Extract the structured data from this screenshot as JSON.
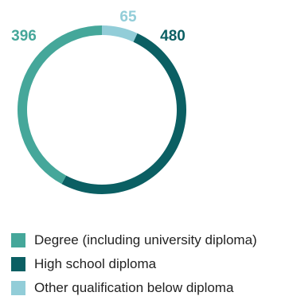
{
  "chart_data": {
    "type": "pie",
    "title": "",
    "categories": [
      "Degree (including university diploma)",
      "High school diploma",
      "Other qualification below diploma"
    ],
    "values": [
      396,
      480,
      65
    ],
    "value_labels": [
      "396",
      "480",
      "65"
    ],
    "colors": [
      "#45a79a",
      "#0b5f63",
      "#92cdd8"
    ],
    "legend_position": "bottom",
    "donut": true
  }
}
